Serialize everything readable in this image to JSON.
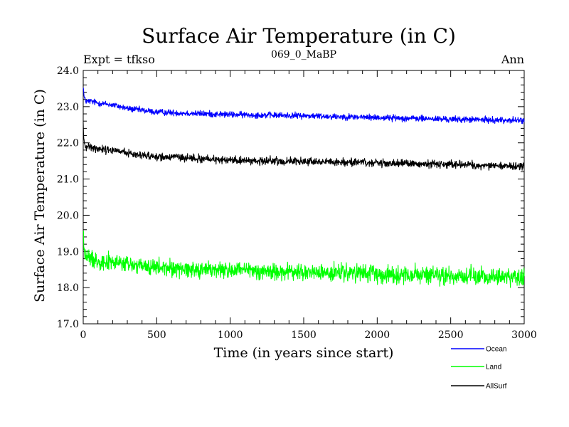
{
  "chart_data": {
    "type": "line",
    "title": "Surface Air Temperature (in C)",
    "subtitle": "069_0_MaBP",
    "experiment_label": "Expt = tfkso",
    "period_label": "Ann",
    "xlabel": "Time (in years since start)",
    "ylabel": "Surface Air Temperature (in C)",
    "xlim": [
      0,
      3000
    ],
    "ylim": [
      17.0,
      24.0
    ],
    "x_ticks": [
      0,
      500,
      1000,
      1500,
      2000,
      2500,
      3000
    ],
    "x_tick_labels": [
      "0",
      "500",
      "1000",
      "1500",
      "2000",
      "2500",
      "3000"
    ],
    "y_ticks": [
      17.0,
      18.0,
      19.0,
      20.0,
      21.0,
      22.0,
      23.0,
      24.0
    ],
    "y_tick_labels": [
      "17.0",
      "18.0",
      "19.0",
      "20.0",
      "21.0",
      "22.0",
      "23.0",
      "24.0"
    ],
    "x_minor_step": 100,
    "y_minor_step": 0.2,
    "grid": false,
    "legend_position": "bottom-right",
    "series": [
      {
        "name": "Ocean",
        "color": "#0000ff",
        "x": [
          0,
          5,
          10,
          20,
          50,
          100,
          200,
          300,
          400,
          500,
          700,
          1000,
          1500,
          2000,
          2500,
          3000
        ],
        "values": [
          23.6,
          23.3,
          23.2,
          23.15,
          23.15,
          23.1,
          23.05,
          22.95,
          22.9,
          22.85,
          22.82,
          22.78,
          22.75,
          22.7,
          22.65,
          22.62
        ],
        "noise_amplitude": 0.08
      },
      {
        "name": "Land",
        "color": "#00ff00",
        "x": [
          0,
          5,
          10,
          20,
          50,
          100,
          200,
          300,
          400,
          500,
          700,
          1000,
          1500,
          2000,
          2500,
          3000
        ],
        "values": [
          19.6,
          19.1,
          18.95,
          18.85,
          18.8,
          18.75,
          18.7,
          18.65,
          18.58,
          18.55,
          18.52,
          18.48,
          18.42,
          18.38,
          18.32,
          18.28
        ],
        "noise_amplitude": 0.22
      },
      {
        "name": "AllSurf",
        "color": "#000000",
        "x": [
          0,
          5,
          10,
          20,
          50,
          100,
          200,
          300,
          400,
          500,
          700,
          1000,
          1500,
          2000,
          2500,
          3000
        ],
        "values": [
          22.5,
          22.05,
          21.95,
          21.9,
          21.88,
          21.85,
          21.8,
          21.72,
          21.66,
          21.62,
          21.58,
          21.52,
          21.48,
          21.44,
          21.4,
          21.36
        ],
        "noise_amplitude": 0.1
      }
    ]
  }
}
